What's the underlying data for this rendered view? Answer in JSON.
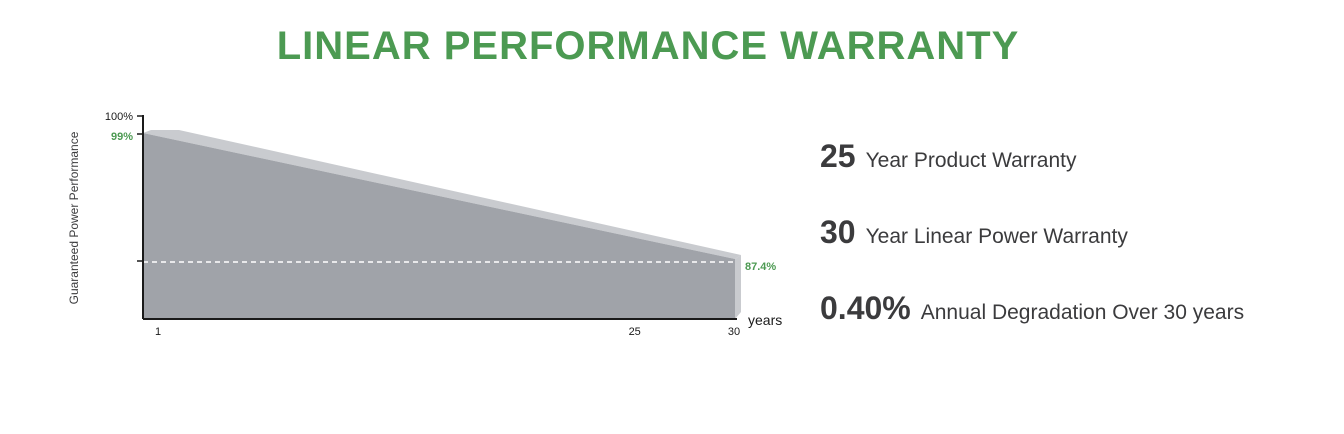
{
  "title": "LINEAR PERFORMANCE WARRANTY",
  "colors": {
    "title": "#4c9a52",
    "label_green": "#4c9a52",
    "area_fill": "#a0a3a9",
    "area_bevel": "#c9cbcf",
    "axis": "#1a1a1a",
    "text": "#3b3b3d"
  },
  "chart_data": {
    "type": "area",
    "title": "",
    "xlabel": "years",
    "ylabel": "Guaranteed Power Performance",
    "x_ticks": [
      "1",
      "25",
      "30"
    ],
    "y_ticks": [
      "100%"
    ],
    "series": [
      {
        "x": [
          1,
          30
        ],
        "values": [
          99,
          87.4
        ]
      }
    ],
    "data_labels": {
      "start": "99%",
      "end": "87.4%"
    },
    "reference_line": {
      "value": 87.4,
      "style": "dashed"
    },
    "xlim": [
      0,
      30
    ],
    "grid": false
  },
  "features": [
    {
      "number": "25",
      "text": "Year Product Warranty"
    },
    {
      "number": "30",
      "text": "Year Linear Power Warranty"
    },
    {
      "number": "0.40%",
      "text": "Annual Degradation Over 30 years"
    }
  ]
}
